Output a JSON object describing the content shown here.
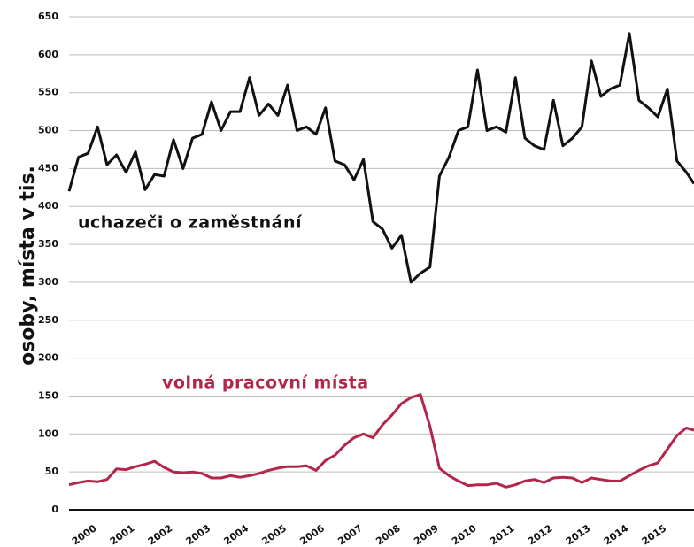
{
  "chart_data": {
    "type": "line",
    "y_label": "osoby, místa v tis.",
    "x": [
      2000,
      2000.25,
      2000.5,
      2000.75,
      2001,
      2001.25,
      2001.5,
      2001.75,
      2002,
      2002.25,
      2002.5,
      2002.75,
      2003,
      2003.25,
      2003.5,
      2003.75,
      2004,
      2004.25,
      2004.5,
      2004.75,
      2005,
      2005.25,
      2005.5,
      2005.75,
      2006,
      2006.25,
      2006.5,
      2006.75,
      2007,
      2007.25,
      2007.5,
      2007.75,
      2008,
      2008.25,
      2008.5,
      2008.75,
      2009,
      2009.25,
      2009.5,
      2009.75,
      2010,
      2010.25,
      2010.5,
      2010.75,
      2011,
      2011.25,
      2011.5,
      2011.75,
      2012,
      2012.25,
      2012.5,
      2012.75,
      2013,
      2013.25,
      2013.5,
      2013.75,
      2014,
      2014.25,
      2014.5,
      2014.75,
      2015,
      2015.25,
      2015.5,
      2015.75,
      2016,
      2016.25,
      2016.45
    ],
    "series": [
      {
        "name": "uchazeči o zaměstnání",
        "color": "#111111",
        "values": [
          420,
          465,
          470,
          505,
          455,
          468,
          445,
          472,
          422,
          442,
          440,
          488,
          450,
          490,
          495,
          538,
          500,
          525,
          525,
          570,
          520,
          535,
          520,
          560,
          500,
          505,
          495,
          530,
          460,
          455,
          435,
          462,
          380,
          370,
          345,
          362,
          300,
          312,
          320,
          440,
          465,
          500,
          505,
          580,
          500,
          505,
          498,
          570,
          490,
          480,
          475,
          540,
          480,
          490,
          505,
          592,
          545,
          555,
          560,
          628,
          540,
          530,
          518,
          555,
          460,
          445,
          430
        ]
      },
      {
        "name": "volná pracovní místa",
        "color": "#b3264b",
        "values": [
          33,
          36,
          38,
          37,
          40,
          54,
          53,
          57,
          60,
          64,
          56,
          50,
          49,
          50,
          48,
          42,
          42,
          45,
          43,
          45,
          48,
          52,
          55,
          57,
          57,
          58,
          52,
          65,
          72,
          85,
          95,
          100,
          95,
          112,
          125,
          140,
          148,
          152,
          110,
          55,
          45,
          38,
          32,
          33,
          33,
          35,
          30,
          33,
          38,
          40,
          36,
          42,
          43,
          42,
          36,
          42,
          40,
          38,
          38,
          45,
          52,
          58,
          62,
          80,
          98,
          108,
          105
        ]
      }
    ],
    "xlim": [
      2000,
      2016.45
    ],
    "xticks": [
      2000,
      2001,
      2002,
      2003,
      2004,
      2005,
      2006,
      2007,
      2008,
      2009,
      2010,
      2011,
      2012,
      2013,
      2014,
      2015
    ],
    "ylim": [
      0,
      650
    ],
    "yticks": [
      0,
      50,
      100,
      150,
      200,
      250,
      300,
      350,
      400,
      450,
      500,
      550,
      600,
      650
    ],
    "grid": true
  }
}
